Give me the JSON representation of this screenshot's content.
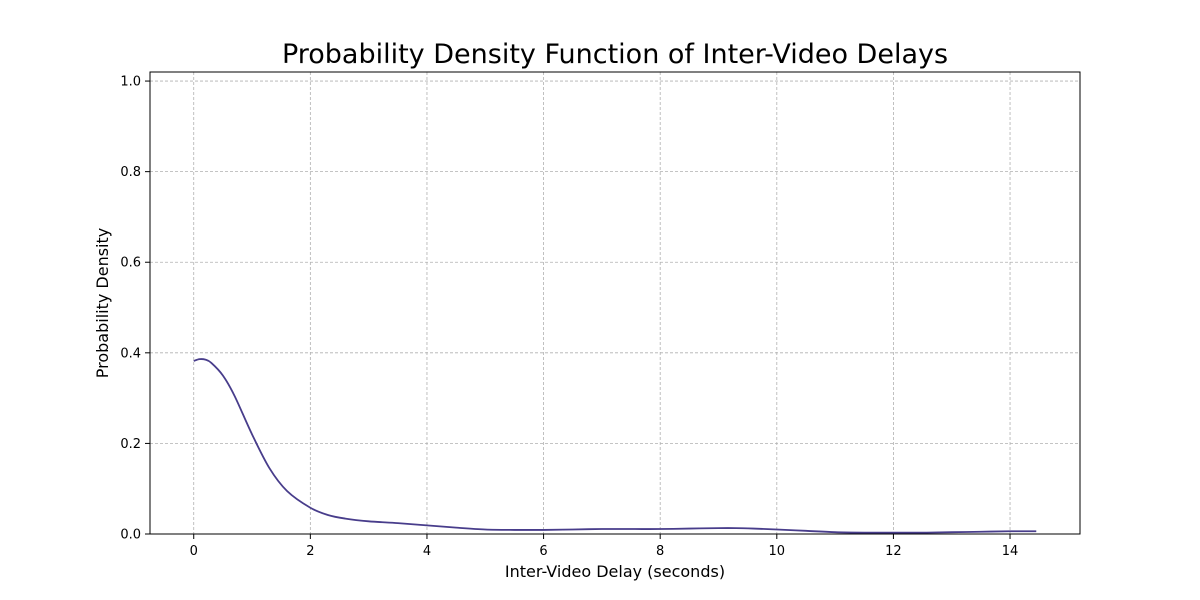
{
  "chart_data": {
    "type": "line",
    "title": "Probability Density Function of Inter-Video Delays",
    "xlabel": "Inter-Video Delay (seconds)",
    "ylabel": "Probability Density",
    "xlim": [
      -0.75,
      15.2
    ],
    "ylim": [
      0,
      1.02
    ],
    "xticks": [
      0,
      2,
      4,
      6,
      8,
      10,
      12,
      14
    ],
    "yticks": [
      0.0,
      0.2,
      0.4,
      0.6,
      0.8,
      1.0
    ],
    "grid": true,
    "line_color": "#483d8b",
    "series": [
      {
        "x": [
          0,
          0.1,
          0.2,
          0.3,
          0.5,
          0.7,
          1.0,
          1.3,
          1.6,
          2.0,
          2.3,
          2.6,
          3.0,
          3.5,
          4.0,
          4.5,
          5.0,
          5.5,
          6.0,
          6.5,
          7.0,
          7.5,
          8.0,
          8.5,
          9.0,
          9.3,
          9.6,
          10.0,
          10.5,
          11.0,
          11.5,
          12.0,
          12.5,
          13.0,
          13.5,
          14.0,
          14.45
        ],
        "y": [
          0.382,
          0.386,
          0.385,
          0.378,
          0.35,
          0.305,
          0.22,
          0.145,
          0.095,
          0.058,
          0.042,
          0.034,
          0.028,
          0.024,
          0.019,
          0.014,
          0.01,
          0.009,
          0.009,
          0.01,
          0.011,
          0.011,
          0.011,
          0.012,
          0.013,
          0.013,
          0.012,
          0.01,
          0.007,
          0.004,
          0.003,
          0.003,
          0.003,
          0.004,
          0.005,
          0.006,
          0.006
        ]
      }
    ]
  }
}
